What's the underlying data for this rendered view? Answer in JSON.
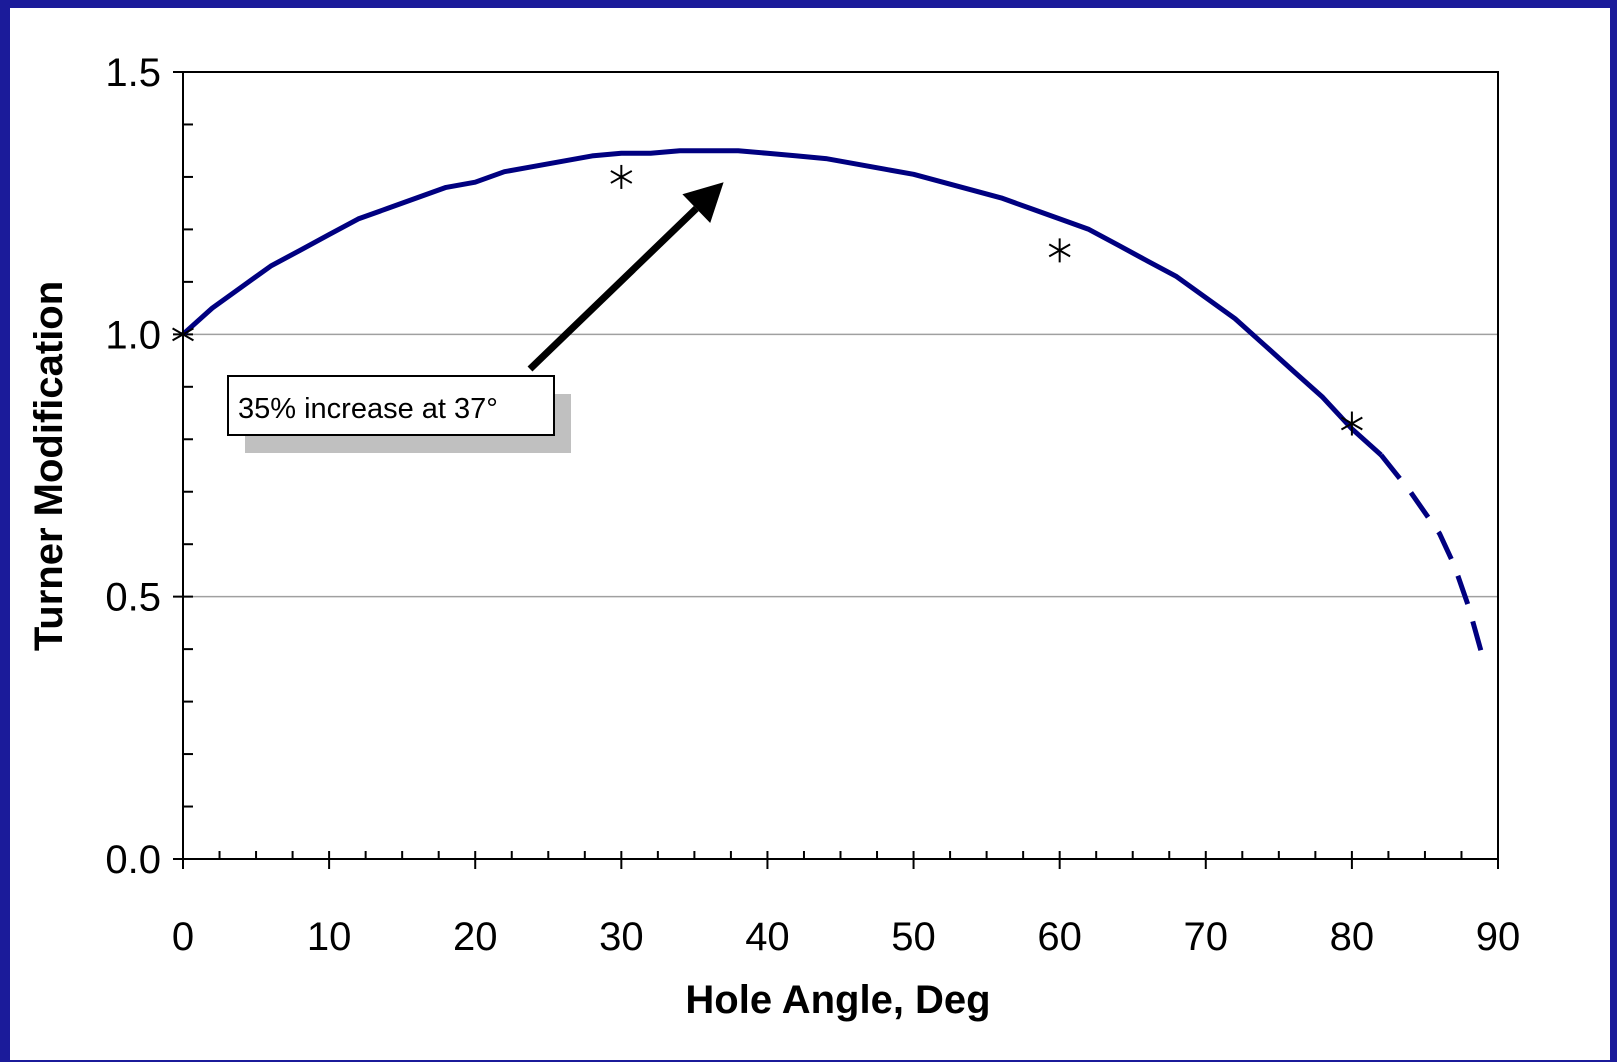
{
  "chart_data": {
    "type": "line",
    "title": "",
    "xlabel": "Hole Angle, Deg",
    "ylabel": "Turner Modification",
    "xlim": [
      0,
      90
    ],
    "ylim": [
      0,
      1.5
    ],
    "x_ticks": [
      "0",
      "10",
      "20",
      "30",
      "40",
      "50",
      "60",
      "70",
      "80",
      "90"
    ],
    "y_ticks": [
      "0.0",
      "0.5",
      "1.0",
      "1.5"
    ],
    "grid": "horizontal lines at 0.5 and 1.0",
    "legend": "none",
    "series": [
      {
        "style": "solid",
        "color": "#000080",
        "x": [
          0,
          2,
          4,
          6,
          8,
          10,
          12,
          14,
          16,
          18,
          20,
          22,
          24,
          26,
          28,
          30,
          32,
          34,
          36,
          37,
          38,
          40,
          42,
          44,
          46,
          48,
          50,
          52,
          54,
          56,
          58,
          60,
          62,
          64,
          66,
          68,
          70,
          72,
          74,
          76,
          78,
          80,
          82
        ],
        "y": [
          1.0,
          1.05,
          1.09,
          1.13,
          1.16,
          1.19,
          1.22,
          1.24,
          1.26,
          1.28,
          1.29,
          1.31,
          1.32,
          1.33,
          1.34,
          1.345,
          1.345,
          1.35,
          1.35,
          1.35,
          1.35,
          1.345,
          1.34,
          1.335,
          1.325,
          1.315,
          1.305,
          1.29,
          1.275,
          1.26,
          1.24,
          1.22,
          1.2,
          1.17,
          1.14,
          1.11,
          1.07,
          1.03,
          0.98,
          0.93,
          0.88,
          0.82,
          0.77
        ]
      },
      {
        "style": "dashed",
        "color": "#000080",
        "x": [
          82,
          84,
          86,
          87,
          88,
          89
        ],
        "y": [
          0.77,
          0.7,
          0.62,
          0.56,
          0.48,
          0.38
        ]
      }
    ],
    "markers": {
      "symbol": "asterisk",
      "x": [
        0,
        30,
        60,
        80
      ],
      "y": [
        1.0,
        1.3,
        1.16,
        0.83
      ]
    },
    "annotation": {
      "text": "35% increase at 37°",
      "arrow_to": {
        "x": 37,
        "y": 1.29
      }
    }
  },
  "colors": {
    "frame": "#1b1b9a",
    "background": "#ffffff",
    "line": "#000080",
    "gridline": "#a0a0a0",
    "shadow": "#c0c0c0"
  }
}
